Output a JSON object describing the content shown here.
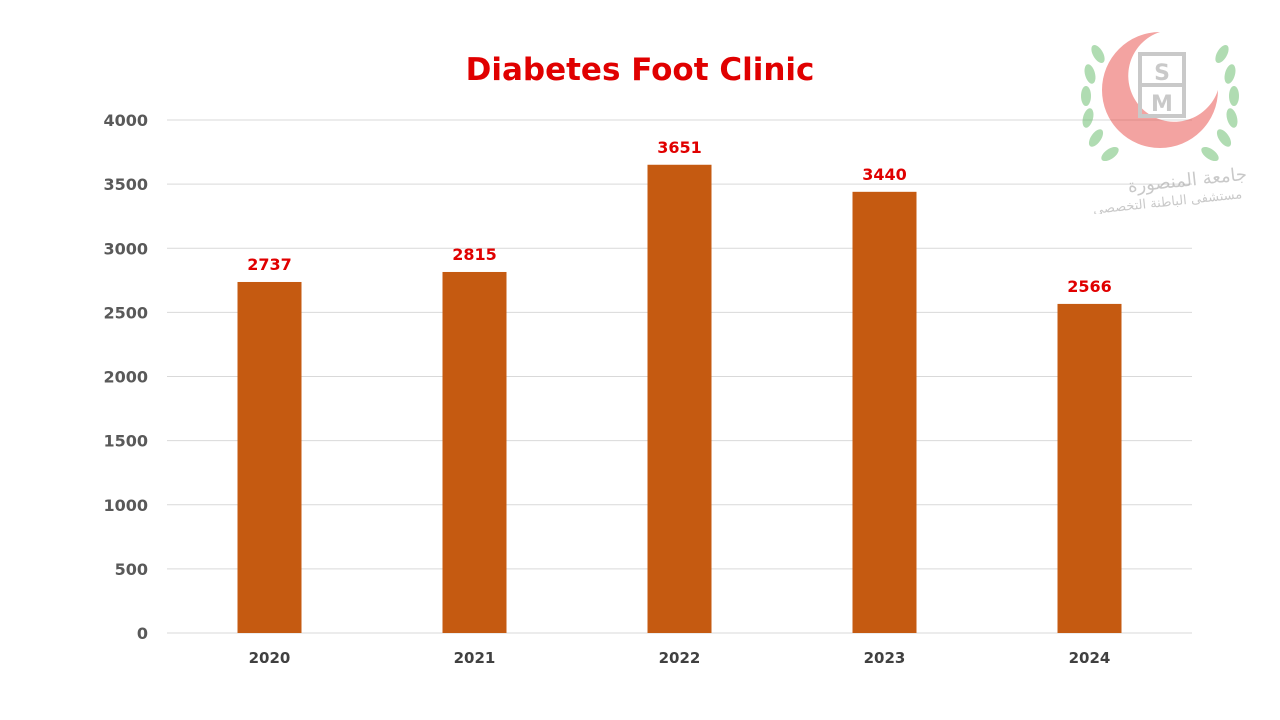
{
  "chart_data": {
    "type": "bar",
    "title": "Diabetes Foot Clinic",
    "categories": [
      "2020",
      "2021",
      "2022",
      "2023",
      "2024"
    ],
    "values": [
      2737,
      2815,
      3651,
      3440,
      2566
    ],
    "xlabel": "",
    "ylabel": "",
    "ylim": [
      0,
      4000
    ],
    "yticks": [
      0,
      500,
      1000,
      1500,
      2000,
      2500,
      3000,
      3500,
      4000
    ],
    "grid": true,
    "legend": "none",
    "data_labels": true,
    "colors": {
      "bar": "#c55a11",
      "title": "#e00000",
      "data_label": "#e00000",
      "grid": "#d9d9d9"
    }
  },
  "logo": {
    "icon": "hospital-crescent-logo-icon",
    "monogram": "HSM",
    "arabic_line1": "جامعة المنصورة",
    "arabic_line2": "مستشفى الباطنة التخصصي"
  }
}
